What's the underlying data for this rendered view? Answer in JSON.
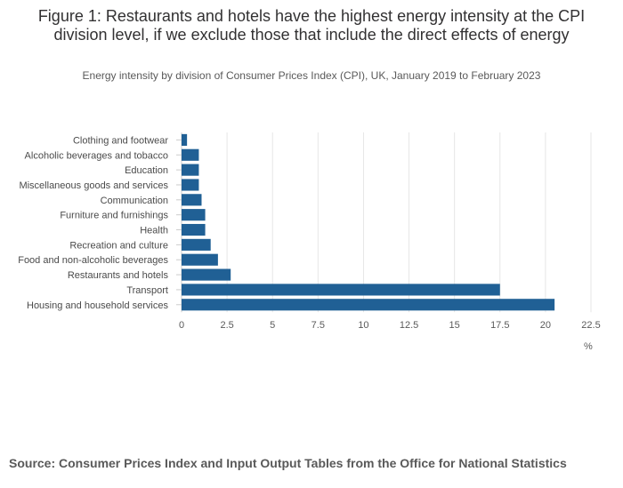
{
  "header": {
    "title": "Figure 1: Restaurants and hotels have the highest energy intensity at the CPI division level, if we exclude those that include the direct effects of energy",
    "subtitle": "Energy intensity by division of Consumer Prices Index (CPI), UK, January 2019 to February 2023"
  },
  "footer": {
    "source": "Source: Consumer Prices Index and Input Output Tables from the Office for National Statistics"
  },
  "colors": {
    "bar": "#206095",
    "grid": "#e6e6e6",
    "axis": "#cccccc"
  },
  "chart_data": {
    "type": "bar",
    "orientation": "horizontal",
    "categories": [
      "Clothing and footwear",
      "Alcoholic beverages and tobacco",
      "Education",
      "Miscellaneous goods and services",
      "Communication",
      "Furniture and furnishings",
      "Health",
      "Recreation and culture",
      "Food and non-alcoholic beverages",
      "Restaurants and hotels",
      "Transport",
      "Housing and household services"
    ],
    "values": [
      0.3,
      0.95,
      0.95,
      0.95,
      1.1,
      1.3,
      1.3,
      1.6,
      2.0,
      2.7,
      17.5,
      20.5
    ],
    "xlim": [
      0,
      22.5
    ],
    "xticks": [
      0,
      2.5,
      5,
      7.5,
      10,
      12.5,
      15,
      17.5,
      20,
      22.5
    ],
    "xtick_labels": [
      "0",
      "2.5",
      "5",
      "7.5",
      "10",
      "12.5",
      "15",
      "17.5",
      "20",
      "22.5"
    ],
    "xlabel": "%",
    "grid": true,
    "legend": "none"
  }
}
